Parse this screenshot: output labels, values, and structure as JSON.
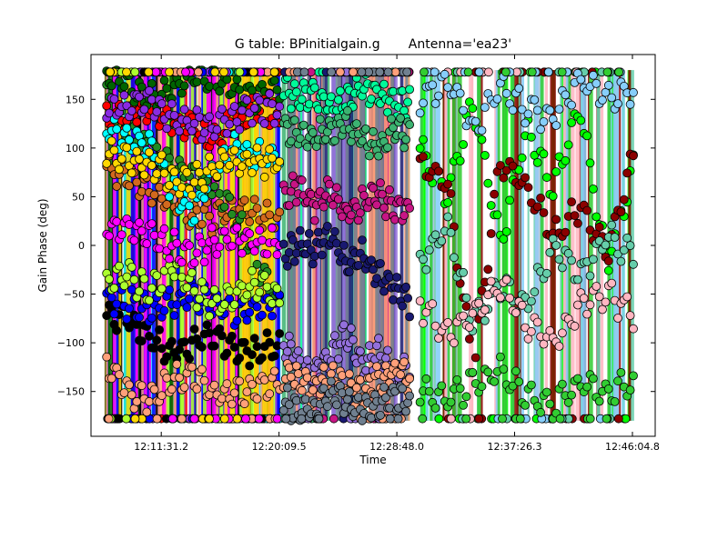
{
  "chart_data": {
    "type": "scatter",
    "title": "G table: BPinitialgain.g       Antenna='ea23'",
    "xlabel": "Time",
    "ylabel": "Gain Phase (deg)",
    "xlim": [
      "12:06:22",
      "12:47:45"
    ],
    "ylim": [
      -196,
      196
    ],
    "x_ticks": [
      "12:11:31.2",
      "12:20:09.5",
      "12:28:48.0",
      "12:37:26.3",
      "12:46:04.8"
    ],
    "y_ticks": [
      -150,
      -100,
      -50,
      0,
      50,
      100,
      150
    ],
    "grid": false,
    "legend": "none",
    "segments": [
      {
        "x_start": "12:07:31",
        "x_end": "12:20:12"
      },
      {
        "x_start": "12:20:30",
        "x_end": "12:29:44"
      },
      {
        "x_start": "12:30:30",
        "x_end": "12:46:09"
      }
    ],
    "series": [
      {
        "segment": 0,
        "color": "#d2691e",
        "values": [
          80,
          70,
          60,
          45,
          30,
          28,
          40,
          35,
          20
        ]
      },
      {
        "segment": 0,
        "color": "#228b22",
        "values": [
          150,
          120,
          100,
          80,
          70,
          60,
          30,
          -20,
          -60
        ]
      },
      {
        "segment": 0,
        "color": "#ff0000",
        "values": [
          130,
          135,
          140,
          128,
          120,
          110,
          125,
          140,
          130
        ]
      },
      {
        "segment": 0,
        "color": "#006400",
        "values": [
          175,
          165,
          150,
          160,
          175,
          170,
          160,
          150,
          165
        ]
      },
      {
        "segment": 0,
        "color": "#00ffff",
        "values": [
          120,
          110,
          100,
          60,
          30,
          80,
          100,
          90,
          95
        ]
      },
      {
        "segment": 0,
        "color": "#8a2be2",
        "values": [
          140,
          145,
          150,
          130,
          125,
          120,
          135,
          140,
          138
        ]
      },
      {
        "segment": 0,
        "color": "#000000",
        "values": [
          -70,
          -75,
          -95,
          -110,
          -100,
          -95,
          -105,
          -110,
          -100
        ]
      },
      {
        "segment": 0,
        "color": "#0000ff",
        "values": [
          -55,
          -60,
          -65,
          -60,
          -50,
          -60,
          -70,
          -65,
          -60
        ]
      },
      {
        "segment": 0,
        "color": "#adff2f",
        "values": [
          -40,
          -30,
          -50,
          -20,
          -45,
          -60,
          -50,
          -40,
          -55
        ]
      },
      {
        "segment": 0,
        "color": "#ffa07a",
        "values": [
          -120,
          -150,
          -160,
          -140,
          -130,
          -155,
          -150,
          -145,
          -140
        ]
      },
      {
        "segment": 0,
        "color": "#ff00ff",
        "values": [
          20,
          15,
          10,
          0,
          -10,
          5,
          10,
          0,
          5
        ]
      },
      {
        "segment": 0,
        "color": "#ffd700",
        "values": [
          95,
          90,
          85,
          70,
          65,
          80,
          90,
          85,
          88
        ]
      },
      {
        "segment": 1,
        "color": "#00fa9a",
        "values": [
          160,
          150,
          155,
          140,
          150,
          160,
          155,
          150,
          145
        ]
      },
      {
        "segment": 1,
        "color": "#3cb371",
        "values": [
          120,
          115,
          110,
          120,
          125,
          110,
          100,
          120,
          115
        ]
      },
      {
        "segment": 1,
        "color": "#c71585",
        "values": [
          50,
          60,
          40,
          55,
          30,
          45,
          50,
          40,
          35
        ]
      },
      {
        "segment": 1,
        "color": "#191970",
        "values": [
          -10,
          0,
          -5,
          10,
          -20,
          -10,
          -30,
          -40,
          -60
        ]
      },
      {
        "segment": 1,
        "color": "#9370db",
        "values": [
          -100,
          -120,
          -130,
          -110,
          -90,
          -120,
          -110,
          -130,
          -125
        ]
      },
      {
        "segment": 1,
        "color": "#ffa07a",
        "values": [
          -130,
          -140,
          -150,
          -135,
          -145,
          -150,
          -140,
          -130,
          -135
        ]
      },
      {
        "segment": 1,
        "color": "#708090",
        "values": [
          -160,
          -170,
          -165,
          -150,
          -160,
          -170,
          -165,
          -155,
          -160
        ]
      },
      {
        "segment": 2,
        "color": "#00ff00",
        "values": [
          100,
          50,
          150,
          0,
          120,
          60,
          140,
          -20,
          80
        ]
      },
      {
        "segment": 2,
        "color": "#8b0000",
        "values": [
          80,
          70,
          -130,
          90,
          60,
          10,
          40,
          -10,
          90
        ]
      },
      {
        "segment": 2,
        "color": "#66cdaa",
        "values": [
          -20,
          20,
          -80,
          -40,
          -60,
          0,
          -30,
          10,
          -10
        ]
      },
      {
        "segment": 2,
        "color": "#ffb6c1",
        "values": [
          -60,
          -90,
          -70,
          -40,
          -80,
          -100,
          -60,
          -50,
          -70
        ]
      },
      {
        "segment": 2,
        "color": "#87cefa",
        "values": [
          150,
          170,
          120,
          160,
          140,
          130,
          170,
          150,
          160
        ]
      },
      {
        "segment": 2,
        "color": "#32cd32",
        "values": [
          -150,
          -160,
          -140,
          -130,
          -155,
          -165,
          -140,
          -150,
          -145
        ]
      }
    ]
  }
}
